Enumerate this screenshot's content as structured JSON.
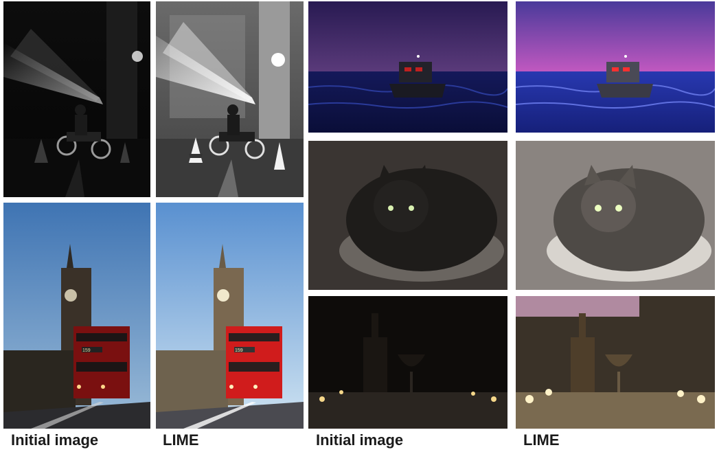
{
  "figure": {
    "captions": {
      "left_initial": "Initial image",
      "left_lime": "LIME",
      "right_initial": "Initial image",
      "right_lime": "LIME"
    },
    "panels": [
      {
        "subject": "motorcyclist-in-spotlight",
        "variant": "initial"
      },
      {
        "subject": "motorcyclist-in-spotlight",
        "variant": "lime"
      },
      {
        "subject": "big-ben-and-red-bus",
        "variant": "initial"
      },
      {
        "subject": "big-ben-and-red-bus",
        "variant": "lime"
      },
      {
        "subject": "boat-at-dusk",
        "variant": "initial"
      },
      {
        "subject": "boat-at-dusk",
        "variant": "lime"
      },
      {
        "subject": "cat-on-cushion",
        "variant": "initial"
      },
      {
        "subject": "cat-on-cushion",
        "variant": "lime"
      },
      {
        "subject": "bottle-glass-candles",
        "variant": "initial"
      },
      {
        "subject": "bottle-glass-candles",
        "variant": "lime"
      }
    ],
    "bus_plate_text": "159"
  }
}
